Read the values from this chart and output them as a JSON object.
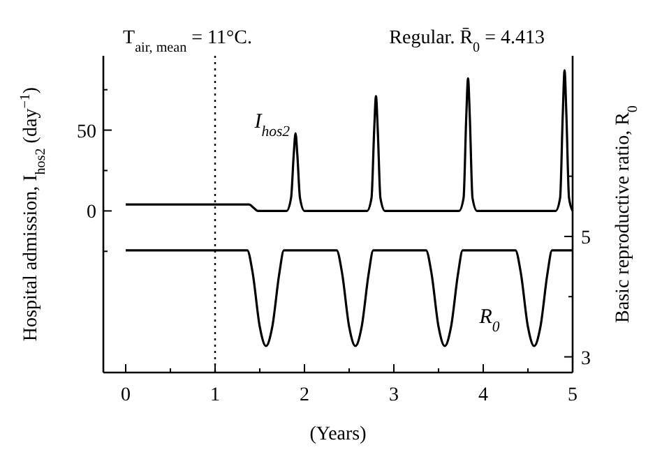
{
  "chart_data": {
    "type": "line",
    "xlabel": "(Years)",
    "ylabel": "Hospital admission, I$_{hos2}$ (day$^{−1}$)",
    "y2label": "Basic reproductive ratio, R$_{0}$",
    "annotations": [
      "T$_{air, mean}$ = 11°C.",
      "Regular. R̄$_{0}$ = 4.413"
    ],
    "xlim": [
      -0.25,
      5
    ],
    "xticks": [
      0,
      {
        "value": 0.5,
        "label": null
      },
      1,
      {
        "value": 1.5,
        "label": null
      },
      2,
      {
        "value": 2.5,
        "label": null
      },
      3,
      {
        "value": 3.5,
        "label": null
      },
      4,
      {
        "value": 4.5,
        "label": null
      },
      5
    ],
    "ylim": [
      -100,
      96
    ],
    "yticks": [
      {
        "value": -25,
        "label": null
      },
      0,
      {
        "value": 25,
        "label": null
      },
      50,
      {
        "value": 75,
        "label": null
      }
    ],
    "y2lim": [
      2.74,
      8.0
    ],
    "y2ticks": [
      3,
      {
        "value": 4,
        "label": null
      },
      5,
      {
        "value": 6,
        "label": null
      }
    ],
    "ref_lines": [
      {
        "axis": "x",
        "value": 1,
        "label": null,
        "color": "#000000",
        "line_style": "dotted"
      }
    ],
    "grid": false,
    "marker": "none",
    "line_style": "solid",
    "series": [
      {
        "name": "I$_{hos2}$",
        "color": "#000000",
        "x": [
          0,
          1.38,
          1.43,
          1.48,
          1.8,
          1.85,
          1.88,
          1.9,
          1.92,
          1.95,
          2.0,
          2.7,
          2.75,
          2.78,
          2.8,
          2.82,
          2.85,
          2.9,
          3.73,
          3.78,
          3.81,
          3.83,
          3.85,
          3.88,
          3.93,
          4.81,
          4.86,
          4.89,
          4.91,
          4.93,
          4.96,
          5.0
        ],
        "values": [
          4,
          4,
          2,
          0,
          0,
          8,
          35,
          48,
          35,
          8,
          0,
          0,
          8,
          50,
          71,
          50,
          8,
          0,
          0,
          8,
          58,
          82,
          58,
          8,
          0,
          0,
          8,
          60,
          87,
          60,
          8,
          0
        ]
      },
      {
        "name": "R$_{0}$",
        "color": "#000000",
        "axis": "y2",
        "x": [
          0,
          1.36,
          1.42,
          1.5,
          1.57,
          1.64,
          1.72,
          1.77,
          2.36,
          2.42,
          2.5,
          2.57,
          2.64,
          2.72,
          2.77,
          3.36,
          3.42,
          3.5,
          3.57,
          3.64,
          3.72,
          3.77,
          4.36,
          4.42,
          4.5,
          4.57,
          4.64,
          4.72,
          4.77,
          5.0
        ],
        "values": [
          4.77,
          4.77,
          4.4,
          3.5,
          3.18,
          3.5,
          4.4,
          4.77,
          4.77,
          4.4,
          3.5,
          3.18,
          3.5,
          4.4,
          4.77,
          4.77,
          4.4,
          3.5,
          3.18,
          3.5,
          4.4,
          4.77,
          4.77,
          4.4,
          3.5,
          3.18,
          3.5,
          4.4,
          4.77,
          4.77
        ]
      }
    ]
  }
}
